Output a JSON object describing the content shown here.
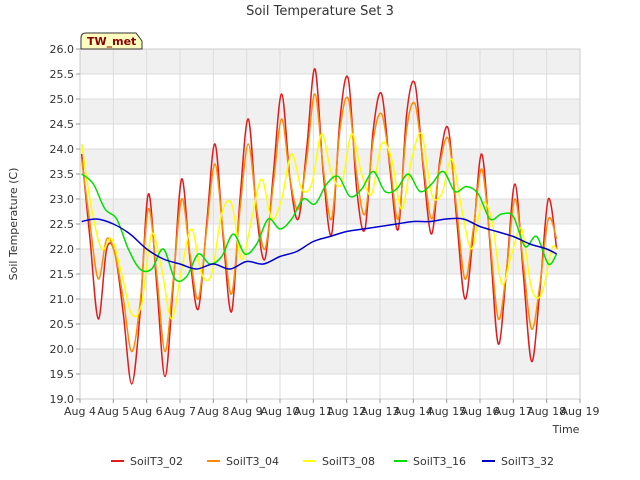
{
  "chart_data": {
    "type": "line",
    "title": "Soil Temperature Set 3",
    "xlabel": "Time",
    "ylabel": "Soil Temperature (C)",
    "badge": "TW_met",
    "xlim": [
      4,
      19
    ],
    "ylim": [
      19.0,
      26.0
    ],
    "x_ticks": [
      "Aug 4",
      "Aug 5",
      "Aug 6",
      "Aug 7",
      "Aug 8",
      "Aug 9",
      "Aug 10",
      "Aug 11",
      "Aug 12",
      "Aug 13",
      "Aug 14",
      "Aug 15",
      "Aug 16",
      "Aug 17",
      "Aug 18",
      "Aug 19"
    ],
    "y_ticks": [
      "19.0",
      "19.5",
      "20.0",
      "20.5",
      "21.0",
      "21.5",
      "22.0",
      "22.5",
      "23.0",
      "23.5",
      "24.0",
      "24.5",
      "25.0",
      "25.5",
      "26.0"
    ],
    "grid": true,
    "legend_position": "bottom",
    "series": [
      {
        "name": "SoilT3_02",
        "color": "#e41a1c",
        "x": [
          4.05,
          4.3,
          4.55,
          4.8,
          5.05,
          5.3,
          5.55,
          5.8,
          6.05,
          6.3,
          6.55,
          6.8,
          7.05,
          7.3,
          7.55,
          7.8,
          8.05,
          8.3,
          8.55,
          8.8,
          9.05,
          9.3,
          9.55,
          9.8,
          10.05,
          10.3,
          10.55,
          10.8,
          11.05,
          11.3,
          11.55,
          11.8,
          12.05,
          12.3,
          12.55,
          12.8,
          13.05,
          13.3,
          13.55,
          13.8,
          14.05,
          14.3,
          14.55,
          14.8,
          15.05,
          15.3,
          15.55,
          15.8,
          16.05,
          16.3,
          16.55,
          16.8,
          17.05,
          17.3,
          17.55,
          17.8,
          18.05,
          18.3
        ],
        "y": [
          23.9,
          22.2,
          20.6,
          22.0,
          21.9,
          20.7,
          19.3,
          20.7,
          23.1,
          21.3,
          19.45,
          21.3,
          23.4,
          21.8,
          20.8,
          22.5,
          24.1,
          22.2,
          20.75,
          23.0,
          24.6,
          22.7,
          21.8,
          23.5,
          25.1,
          23.4,
          22.6,
          24.0,
          25.6,
          23.5,
          22.3,
          24.6,
          25.4,
          23.2,
          22.4,
          24.4,
          25.1,
          23.6,
          22.4,
          24.7,
          25.3,
          23.6,
          22.3,
          23.8,
          24.4,
          22.6,
          21.0,
          22.3,
          23.9,
          22.1,
          20.1,
          21.6,
          23.3,
          21.5,
          19.75,
          21.2,
          23.0,
          22.0
        ]
      },
      {
        "name": "SoilT3_04",
        "color": "#ff8c00",
        "x": [
          4.05,
          4.3,
          4.55,
          4.8,
          5.05,
          5.3,
          5.55,
          5.8,
          6.05,
          6.3,
          6.55,
          6.8,
          7.05,
          7.3,
          7.55,
          7.8,
          8.05,
          8.3,
          8.55,
          8.8,
          9.05,
          9.3,
          9.55,
          9.8,
          10.05,
          10.3,
          10.55,
          10.8,
          11.05,
          11.3,
          11.55,
          11.8,
          12.05,
          12.3,
          12.55,
          12.8,
          13.05,
          13.3,
          13.55,
          13.8,
          14.05,
          14.3,
          14.55,
          14.8,
          15.05,
          15.3,
          15.55,
          15.8,
          16.05,
          16.3,
          16.55,
          16.8,
          17.05,
          17.3,
          17.55,
          17.8,
          18.05,
          18.3
        ],
        "y": [
          23.8,
          22.5,
          21.4,
          22.2,
          21.9,
          21.0,
          19.95,
          20.9,
          22.8,
          21.5,
          19.95,
          21.4,
          23.0,
          21.9,
          21.0,
          22.4,
          23.7,
          22.3,
          21.1,
          22.8,
          24.1,
          22.8,
          22.0,
          23.3,
          24.6,
          23.4,
          22.8,
          23.8,
          25.1,
          23.6,
          22.6,
          24.4,
          25.0,
          23.5,
          22.7,
          24.2,
          24.7,
          23.7,
          22.6,
          24.4,
          24.9,
          23.7,
          22.6,
          23.7,
          24.2,
          22.8,
          21.4,
          22.4,
          23.6,
          22.2,
          20.6,
          21.6,
          23.0,
          21.7,
          20.4,
          21.3,
          22.6,
          22.2
        ]
      },
      {
        "name": "SoilT3_08",
        "color": "#ffff00",
        "x": [
          4.05,
          4.35,
          4.65,
          4.95,
          5.25,
          5.55,
          5.85,
          6.15,
          6.45,
          6.75,
          7.05,
          7.35,
          7.65,
          7.95,
          8.25,
          8.55,
          8.85,
          9.15,
          9.45,
          9.75,
          10.05,
          10.35,
          10.65,
          10.95,
          11.25,
          11.55,
          11.85,
          12.15,
          12.45,
          12.75,
          13.05,
          13.35,
          13.65,
          13.95,
          14.25,
          14.55,
          14.85,
          15.15,
          15.45,
          15.75,
          16.05,
          16.35,
          16.65,
          16.95,
          17.25,
          17.55,
          17.85,
          18.15,
          18.3
        ],
        "y": [
          24.1,
          22.8,
          22.0,
          22.2,
          21.5,
          20.7,
          20.9,
          22.3,
          21.6,
          20.6,
          21.6,
          22.4,
          21.5,
          21.5,
          22.7,
          22.9,
          21.8,
          22.6,
          23.4,
          22.6,
          23.0,
          23.9,
          23.2,
          23.3,
          24.3,
          23.5,
          23.3,
          24.3,
          23.5,
          23.1,
          24.1,
          23.8,
          22.8,
          23.8,
          24.3,
          23.1,
          23.1,
          23.8,
          22.8,
          22.0,
          22.9,
          22.6,
          21.3,
          21.9,
          22.4,
          21.2,
          21.1,
          22.0,
          22.0
        ]
      },
      {
        "name": "SoilT3_16",
        "color": "#00e000",
        "x": [
          4.05,
          4.4,
          4.75,
          5.1,
          5.45,
          5.8,
          6.15,
          6.5,
          6.85,
          7.2,
          7.55,
          7.9,
          8.25,
          8.6,
          8.95,
          9.3,
          9.65,
          10.0,
          10.35,
          10.7,
          11.05,
          11.4,
          11.75,
          12.1,
          12.45,
          12.8,
          13.15,
          13.5,
          13.85,
          14.2,
          14.55,
          14.9,
          15.25,
          15.6,
          15.95,
          16.3,
          16.65,
          17.0,
          17.35,
          17.7,
          18.05,
          18.3
        ],
        "y": [
          23.5,
          23.3,
          22.8,
          22.6,
          22.0,
          21.6,
          21.6,
          22.0,
          21.4,
          21.45,
          21.9,
          21.7,
          21.85,
          22.3,
          21.9,
          22.1,
          22.6,
          22.4,
          22.6,
          23.0,
          22.9,
          23.3,
          23.45,
          23.05,
          23.2,
          23.55,
          23.15,
          23.2,
          23.5,
          23.15,
          23.3,
          23.55,
          23.15,
          23.25,
          23.1,
          22.6,
          22.7,
          22.65,
          22.05,
          22.25,
          21.7,
          21.9
        ]
      },
      {
        "name": "SoilT3_32",
        "color": "#0000cd",
        "x": [
          4.05,
          4.5,
          5.0,
          5.5,
          6.0,
          6.5,
          7.0,
          7.5,
          8.0,
          8.5,
          9.0,
          9.5,
          10.0,
          10.5,
          11.0,
          11.5,
          12.0,
          12.5,
          13.0,
          13.5,
          14.0,
          14.5,
          15.0,
          15.5,
          16.0,
          16.5,
          17.0,
          17.5,
          18.0,
          18.3
        ],
        "y": [
          22.55,
          22.6,
          22.5,
          22.3,
          22.0,
          21.8,
          21.7,
          21.6,
          21.7,
          21.6,
          21.75,
          21.7,
          21.85,
          21.95,
          22.15,
          22.25,
          22.35,
          22.4,
          22.45,
          22.5,
          22.55,
          22.55,
          22.6,
          22.6,
          22.45,
          22.35,
          22.25,
          22.1,
          22.0,
          21.9
        ]
      }
    ]
  }
}
